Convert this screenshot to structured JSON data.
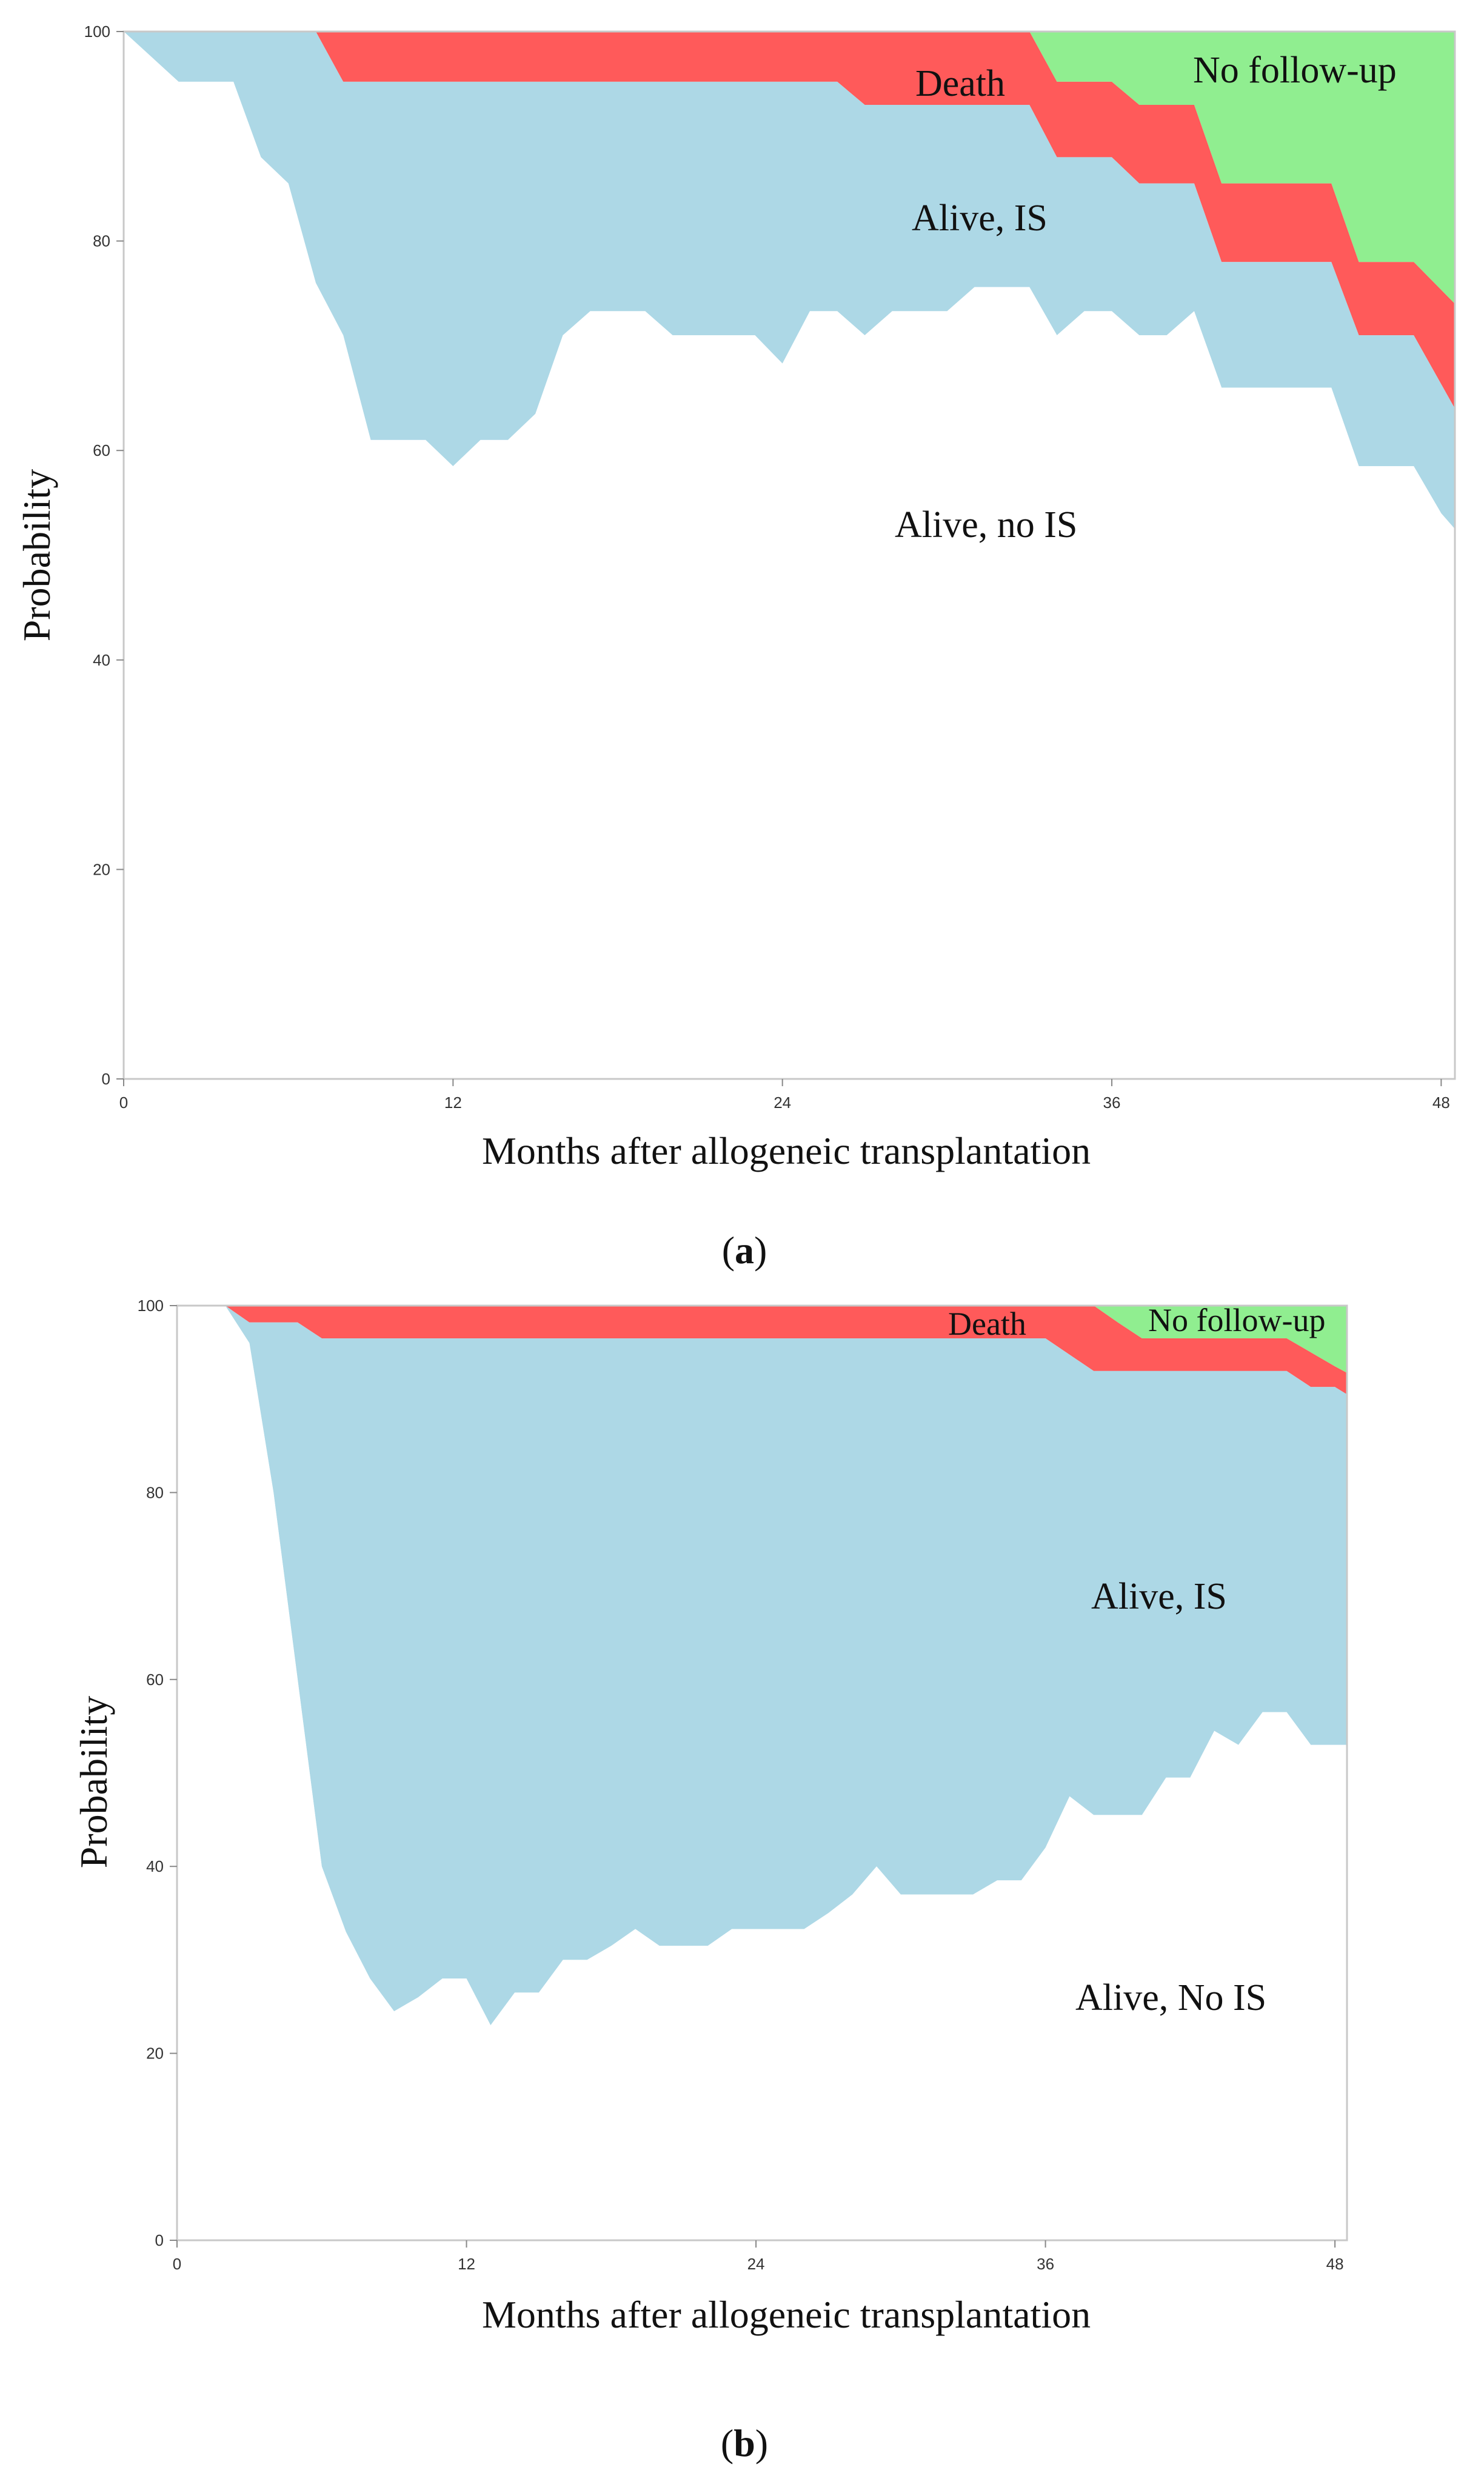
{
  "colors": {
    "alive_no_is": "#ffffff",
    "alive_is": "#add8e6",
    "death": "#ff5a5a",
    "no_follow_up": "#90ee90",
    "axis": "#c8c8c8",
    "text": "#111111"
  },
  "chart_data": [
    {
      "type": "area",
      "stacked": true,
      "panel_label": {
        "open": "(",
        "letter": "a",
        "close": ")"
      },
      "xlabel": "Months after allogeneic transplantation",
      "ylabel": "Probability",
      "xlim": [
        0,
        48
      ],
      "ylim": [
        0,
        100
      ],
      "xticks": [
        0,
        12,
        24,
        36,
        48
      ],
      "yticks": [
        0,
        20,
        40,
        60,
        80,
        100
      ],
      "xtick_labels": [
        "0",
        "12",
        "24",
        "36",
        "48"
      ],
      "ytick_labels": [
        "0",
        "20",
        "40",
        "60",
        "80",
        "100"
      ],
      "boundaries": [
        {
          "name": "alive_no_is_upper",
          "points": [
            [
              0,
              100
            ],
            [
              2,
              95.2
            ],
            [
              4,
              95.2
            ],
            [
              5,
              88
            ],
            [
              6,
              85.5
            ],
            [
              7,
              76
            ],
            [
              8,
              71
            ],
            [
              9,
              61
            ],
            [
              10,
              61
            ],
            [
              11,
              61
            ],
            [
              12,
              58.5
            ],
            [
              13,
              61
            ],
            [
              14,
              61
            ],
            [
              15,
              63.5
            ],
            [
              16,
              71
            ],
            [
              17,
              73.3
            ],
            [
              18,
              73.3
            ],
            [
              19,
              73.3
            ],
            [
              20,
              71
            ],
            [
              21,
              71
            ],
            [
              22,
              71
            ],
            [
              23,
              71
            ],
            [
              24,
              68.3
            ],
            [
              25,
              73.3
            ],
            [
              26,
              73.3
            ],
            [
              27,
              71
            ],
            [
              28,
              73.3
            ],
            [
              29,
              73.3
            ],
            [
              30,
              73.3
            ],
            [
              31,
              75.6
            ],
            [
              32,
              75.6
            ],
            [
              33,
              75.6
            ],
            [
              34,
              71
            ],
            [
              35,
              73.3
            ],
            [
              36,
              73.3
            ],
            [
              37,
              71
            ],
            [
              38,
              71
            ],
            [
              39,
              73.3
            ],
            [
              40,
              66
            ],
            [
              41,
              66
            ],
            [
              42,
              66
            ],
            [
              43,
              66
            ],
            [
              44,
              66
            ],
            [
              45,
              58.5
            ],
            [
              46,
              58.5
            ],
            [
              47,
              58.5
            ],
            [
              48,
              54
            ],
            [
              48.5,
              52.5
            ]
          ]
        },
        {
          "name": "alive_is_upper",
          "points": [
            [
              0,
              100
            ],
            [
              7,
              100
            ],
            [
              8,
              95.2
            ],
            [
              24,
              95.2
            ],
            [
              26,
              95.2
            ],
            [
              27,
              93
            ],
            [
              30,
              93
            ],
            [
              33,
              93
            ],
            [
              34,
              88
            ],
            [
              35,
              88
            ],
            [
              36,
              88
            ],
            [
              37,
              85.5
            ],
            [
              38,
              85.5
            ],
            [
              39,
              85.5
            ],
            [
              40,
              78
            ],
            [
              41,
              78
            ],
            [
              42,
              78
            ],
            [
              43,
              78
            ],
            [
              44,
              78
            ],
            [
              45,
              71
            ],
            [
              46,
              71
            ],
            [
              47,
              71
            ],
            [
              48.5,
              64
            ]
          ]
        },
        {
          "name": "death_upper",
          "points": [
            [
              0,
              100
            ],
            [
              33,
              100
            ],
            [
              34,
              95.2
            ],
            [
              35,
              95.2
            ],
            [
              36,
              95.2
            ],
            [
              37,
              93
            ],
            [
              38,
              93
            ],
            [
              39,
              93
            ],
            [
              40,
              85.5
            ],
            [
              41,
              85.5
            ],
            [
              42,
              85.5
            ],
            [
              43,
              85.5
            ],
            [
              44,
              85.5
            ],
            [
              45,
              78
            ],
            [
              46,
              78
            ],
            [
              47,
              78
            ],
            [
              48.5,
              74
            ]
          ]
        }
      ],
      "series": [
        {
          "name": "Alive, no IS",
          "between": [
            "axis",
            "alive_no_is_upper"
          ]
        },
        {
          "name": "Alive, IS",
          "between": [
            "alive_no_is_upper",
            "alive_is_upper"
          ]
        },
        {
          "name": "Death",
          "between": [
            "alive_is_upper",
            "death_upper"
          ]
        },
        {
          "name": "No follow-up",
          "between": [
            "death_upper",
            "top"
          ]
        }
      ],
      "annotations": {
        "death": "Death",
        "no_follow_up": "No follow-up",
        "alive_is": "Alive, IS",
        "alive_no_is": "Alive, no IS"
      }
    },
    {
      "type": "area",
      "stacked": true,
      "panel_label": {
        "open": "(",
        "letter": "b",
        "close": ")"
      },
      "xlabel": "Months after allogeneic transplantation",
      "ylabel": "Probability",
      "xlim": [
        0,
        48
      ],
      "ylim": [
        0,
        100
      ],
      "xticks": [
        0,
        12,
        24,
        36,
        48
      ],
      "yticks": [
        0,
        20,
        40,
        60,
        80,
        100
      ],
      "xtick_labels": [
        "0",
        "12",
        "24",
        "36",
        "48"
      ],
      "ytick_labels": [
        "0",
        "20",
        "40",
        "60",
        "80",
        "100"
      ],
      "boundaries": [
        {
          "name": "alive_no_is_upper",
          "points": [
            [
              0,
              100
            ],
            [
              2,
              100
            ],
            [
              3,
              96
            ],
            [
              4,
              80
            ],
            [
              5,
              60
            ],
            [
              6,
              40
            ],
            [
              7,
              33
            ],
            [
              8,
              28
            ],
            [
              9,
              24.5
            ],
            [
              10,
              26
            ],
            [
              11,
              28
            ],
            [
              12,
              28
            ],
            [
              13,
              23
            ],
            [
              14,
              26.5
            ],
            [
              15,
              26.5
            ],
            [
              16,
              30
            ],
            [
              17,
              30
            ],
            [
              18,
              31.5
            ],
            [
              19,
              33.3
            ],
            [
              20,
              31.5
            ],
            [
              21,
              31.5
            ],
            [
              22,
              31.5
            ],
            [
              23,
              33.3
            ],
            [
              24,
              33.3
            ],
            [
              25,
              33.3
            ],
            [
              26,
              33.3
            ],
            [
              27,
              35
            ],
            [
              28,
              37
            ],
            [
              29,
              40
            ],
            [
              30,
              37
            ],
            [
              31,
              37
            ],
            [
              32,
              37
            ],
            [
              33,
              37
            ],
            [
              34,
              38.5
            ],
            [
              35,
              38.5
            ],
            [
              36,
              42
            ],
            [
              37,
              47.5
            ],
            [
              38,
              45.5
            ],
            [
              39,
              45.5
            ],
            [
              40,
              45.5
            ],
            [
              41,
              49.5
            ],
            [
              42,
              49.5
            ],
            [
              43,
              54.5
            ],
            [
              44,
              53
            ],
            [
              45,
              56.5
            ],
            [
              46,
              56.5
            ],
            [
              47,
              53
            ],
            [
              48,
              53
            ],
            [
              48.5,
              53
            ]
          ]
        },
        {
          "name": "alive_is_upper",
          "points": [
            [
              0,
              100
            ],
            [
              2,
              100
            ],
            [
              3,
              98.2
            ],
            [
              5,
              98.2
            ],
            [
              6,
              96.5
            ],
            [
              12,
              96.5
            ],
            [
              24,
              96.5
            ],
            [
              36,
              96.5
            ],
            [
              38,
              93
            ],
            [
              40,
              93
            ],
            [
              42,
              93
            ],
            [
              44,
              93
            ],
            [
              46,
              93
            ],
            [
              47,
              91.3
            ],
            [
              48,
              91.3
            ],
            [
              48.5,
              90.5
            ]
          ]
        },
        {
          "name": "death_upper",
          "points": [
            [
              0,
              100
            ],
            [
              38,
              100
            ],
            [
              39,
              98.2
            ],
            [
              40,
              96.5
            ],
            [
              42,
              96.5
            ],
            [
              44,
              96.5
            ],
            [
              46,
              96.5
            ],
            [
              47,
              95
            ],
            [
              48,
              93.5
            ],
            [
              48.5,
              92.8
            ]
          ]
        }
      ],
      "series": [
        {
          "name": "Alive, No IS",
          "between": [
            "axis",
            "alive_no_is_upper"
          ]
        },
        {
          "name": "Alive, IS",
          "between": [
            "alive_no_is_upper",
            "alive_is_upper"
          ]
        },
        {
          "name": "Death",
          "between": [
            "alive_is_upper",
            "death_upper"
          ]
        },
        {
          "name": "No follow-up",
          "between": [
            "death_upper",
            "top"
          ]
        }
      ],
      "annotations": {
        "death": "Death",
        "no_follow_up": "No follow-up",
        "alive_is": "Alive, IS",
        "alive_no_is": "Alive, No IS"
      }
    }
  ]
}
